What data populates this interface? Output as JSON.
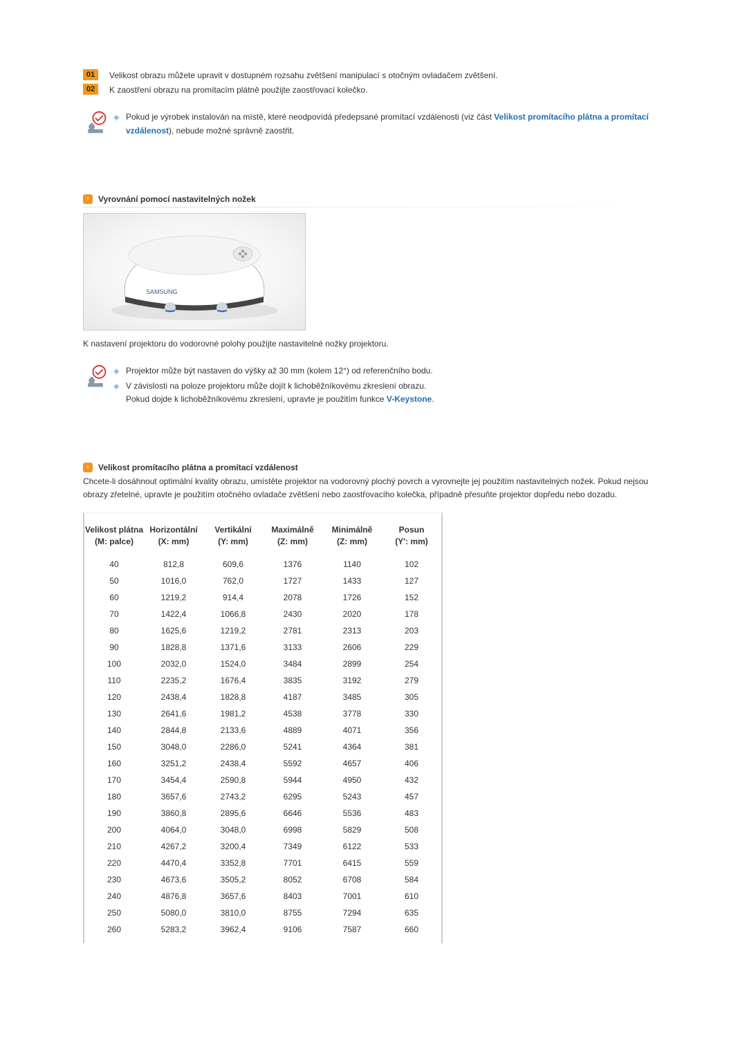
{
  "numbered": [
    {
      "badge": "01",
      "text": "Velikost obrazu můžete upravit v dostupném rozsahu zvětšení manipulací s&nbsp;otočným ovladačem zvětšení."
    },
    {
      "badge": "02",
      "text": "K&nbsp;zaostření obrazu na promítacím plátně použijte zaostřovací kolečko."
    }
  ],
  "note1": {
    "line1_pre": "Pokud je výrobek instalován na místě, které neodpovídá předepsané promítací vzdálenosti (viz část ",
    "line1_link": "Velikost promítacího plátna a promítací vzdálenost",
    "line1_post": "), nebude možné správně zaostřit."
  },
  "section_adjust": {
    "title": "Vyrovnání pomocí nastavitelných nožek",
    "caption": "K&nbsp;nastavení projektoru do vodorovné polohy použijte nastavitelné nožky projektoru."
  },
  "note2": {
    "l1": "Projektor může být nastaven do výšky až 30 mm (kolem 12°) od referenčního bodu.",
    "l2a": "V&nbsp;závislosti na poloze projektoru může dojít k lichoběžníkovému zkreslení obrazu.",
    "l2b_pre": "Pokud dojde k lichoběžníkovému zkreslení, upravte je použitím funkce ",
    "l2b_link": "V-Keystone",
    "l2b_post": "."
  },
  "section_size": {
    "title": "Velikost promítacího plátna a promítací vzdálenost",
    "intro": "Chcete-li dosáhnout optimální kvality obrazu, umístěte projektor na vodorovný plochý povrch a vyrovnejte jej použitím nastavitelných nožek. Pokud nejsou obrazy zřetelné, upravte je použitím otočného ovladače zvětšení nebo zaostřovacího kolečka, případně přesuňte projektor dopředu nebo dozadu."
  },
  "table": {
    "headers": [
      {
        "l1": "Velikost plátna",
        "l2": "(M: palce)"
      },
      {
        "l1": "Horizontální",
        "l2": "(X: mm)"
      },
      {
        "l1": "Vertikální",
        "l2": "(Y: mm)"
      },
      {
        "l1": "Maximálně",
        "l2": "(Z: mm)"
      },
      {
        "l1": "Minimálně",
        "l2": "(Z: mm)"
      },
      {
        "l1": "Posun",
        "l2": "(Y': mm)"
      }
    ],
    "rows": [
      [
        "40",
        "812,8",
        "609,6",
        "1376",
        "1140",
        "102"
      ],
      [
        "50",
        "1016,0",
        "762,0",
        "1727",
        "1433",
        "127"
      ],
      [
        "60",
        "1219,2",
        "914,4",
        "2078",
        "1726",
        "152"
      ],
      [
        "70",
        "1422,4",
        "1066,8",
        "2430",
        "2020",
        "178"
      ],
      [
        "80",
        "1625,6",
        "1219,2",
        "2781",
        "2313",
        "203"
      ],
      [
        "90",
        "1828,8",
        "1371,6",
        "3133",
        "2606",
        "229"
      ],
      [
        "100",
        "2032,0",
        "1524,0",
        "3484",
        "2899",
        "254"
      ],
      [
        "110",
        "2235,2",
        "1676,4",
        "3835",
        "3192",
        "279"
      ],
      [
        "120",
        "2438,4",
        "1828,8",
        "4187",
        "3485",
        "305"
      ],
      [
        "130",
        "2641,6",
        "1981,2",
        "4538",
        "3778",
        "330"
      ],
      [
        "140",
        "2844,8",
        "2133,6",
        "4889",
        "4071",
        "356"
      ],
      [
        "150",
        "3048,0",
        "2286,0",
        "5241",
        "4364",
        "381"
      ],
      [
        "160",
        "3251,2",
        "2438,4",
        "5592",
        "4657",
        "406"
      ],
      [
        "170",
        "3454,4",
        "2590,8",
        "5944",
        "4950",
        "432"
      ],
      [
        "180",
        "3657,6",
        "2743,2",
        "6295",
        "5243",
        "457"
      ],
      [
        "190",
        "3860,8",
        "2895,6",
        "6646",
        "5536",
        "483"
      ],
      [
        "200",
        "4064,0",
        "3048,0",
        "6998",
        "5829",
        "508"
      ],
      [
        "210",
        "4267,2",
        "3200,4",
        "7349",
        "6122",
        "533"
      ],
      [
        "220",
        "4470,4",
        "3352,8",
        "7701",
        "6415",
        "559"
      ],
      [
        "230",
        "4673,6",
        "3505,2",
        "8052",
        "6708",
        "584"
      ],
      [
        "240",
        "4876,8",
        "3657,6",
        "8403",
        "7001",
        "610"
      ],
      [
        "250",
        "5080,0",
        "3810,0",
        "8755",
        "7294",
        "635"
      ],
      [
        "260",
        "5283,2",
        "3962,4",
        "9106",
        "7587",
        "660"
      ]
    ]
  },
  "colors": {
    "accent": "#f7931e",
    "link": "#1e6fb8",
    "text": "#333333",
    "border": "#cccccc"
  }
}
